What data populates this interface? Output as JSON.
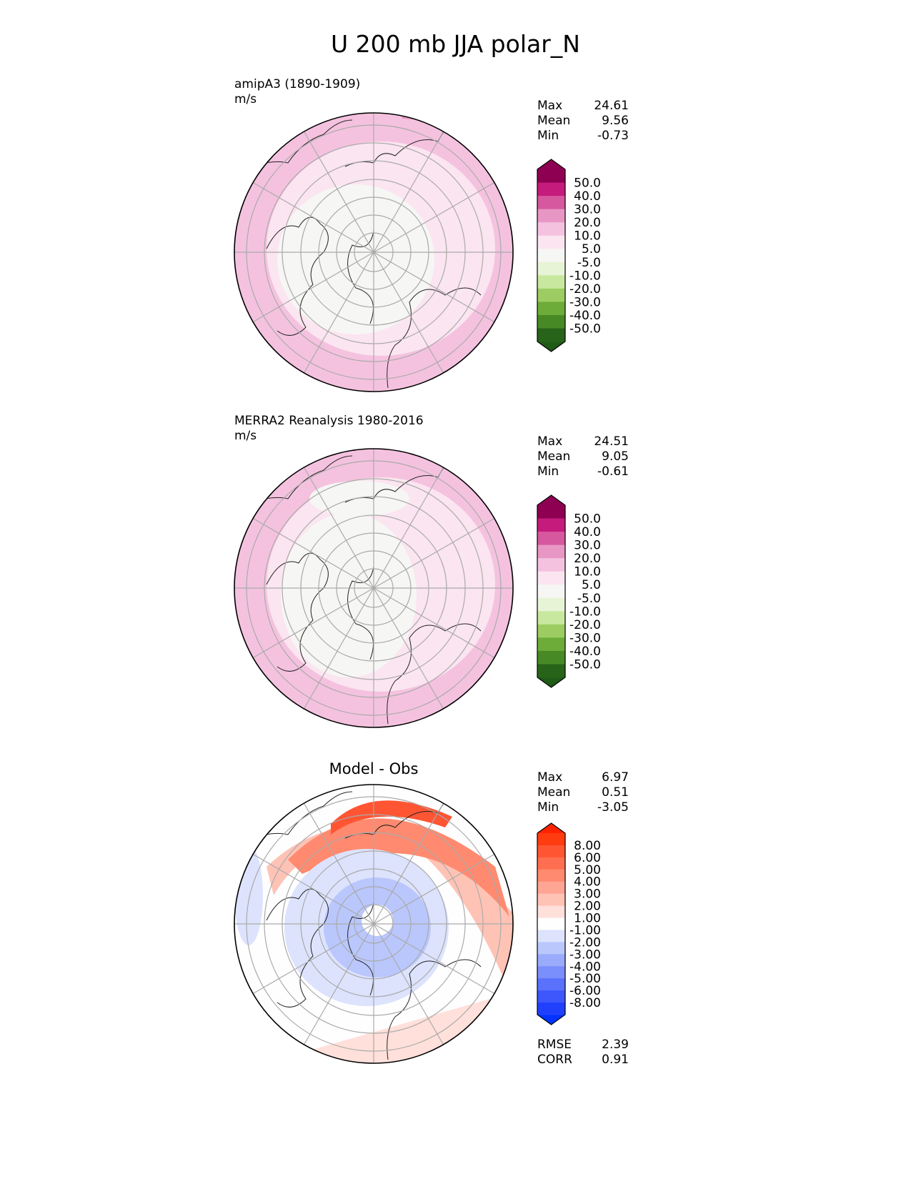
{
  "figure": {
    "title": "U 200 mb JJA polar_N"
  },
  "panels": [
    {
      "name": "amipA3 (1890-1909)",
      "units": "m/s",
      "stats": [
        {
          "label": "Max",
          "value": "24.61"
        },
        {
          "label": "Mean",
          "value": "9.56"
        },
        {
          "label": "Min",
          "value": "-0.73"
        }
      ]
    },
    {
      "name": "MERRA2 Reanalysis 1980-2016",
      "units": "m/s",
      "stats": [
        {
          "label": "Max",
          "value": "24.51"
        },
        {
          "label": "Mean",
          "value": "9.05"
        },
        {
          "label": "Min",
          "value": "-0.61"
        }
      ]
    },
    {
      "name": "Model - Obs",
      "stats": [
        {
          "label": "Max",
          "value": "6.97"
        },
        {
          "label": "Mean",
          "value": "0.51"
        },
        {
          "label": "Min",
          "value": "-3.05"
        }
      ],
      "metrics": [
        {
          "label": "RMSE",
          "value": "2.39"
        },
        {
          "label": "CORR",
          "value": "0.91"
        }
      ]
    }
  ],
  "chart_data": {
    "type": "heatmap",
    "projection": "north polar stereographic",
    "title": "U 200 mb JJA polar_N",
    "colorbars": {
      "field": {
        "ticks": [
          "50.0",
          "40.0",
          "30.0",
          "20.0",
          "10.0",
          "5.0",
          "-5.0",
          "-10.0",
          "-20.0",
          "-30.0",
          "-40.0",
          "-50.0"
        ],
        "colors": [
          "#8e0152",
          "#c51b7d",
          "#d6589e",
          "#e897c4",
          "#f4c2df",
          "#fbe5f0",
          "#f6f6f4",
          "#e7f4d5",
          "#c8e8a0",
          "#9dcd62",
          "#6dac38",
          "#478a25",
          "#276419"
        ],
        "extend_colors": [
          "#8e0152",
          "#1f5a16"
        ]
      },
      "diff": {
        "ticks": [
          "8.00",
          "6.00",
          "5.00",
          "4.00",
          "3.00",
          "2.00",
          "1.00",
          "-1.00",
          "-2.00",
          "-3.00",
          "-4.00",
          "-5.00",
          "-6.00",
          "-8.00"
        ],
        "colors": [
          "#ff3b10",
          "#ff5533",
          "#ff6e50",
          "#ff8a70",
          "#ffa593",
          "#ffc3b6",
          "#ffe0da",
          "#fefefe",
          "#dde3fd",
          "#bac7fd",
          "#9aabfc",
          "#7a8ffc",
          "#5a71fc",
          "#3d57fc",
          "#2140fc"
        ],
        "extend_colors": [
          "#ff2200",
          "#0033ff"
        ]
      }
    }
  }
}
